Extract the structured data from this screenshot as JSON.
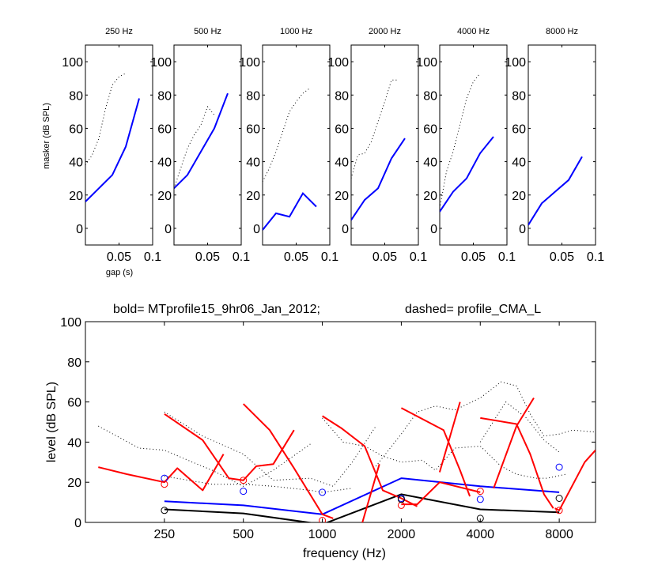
{
  "figure": {
    "top_row_ylabel": "masker (dB SPL)",
    "top_row_xlabel": "gap (s)",
    "bottom_title_bold": "bold= MTprofile15_9hr06_Jan_2012;",
    "bottom_title_dashed": "dashed=  profile_CMA_L"
  },
  "colors": {
    "blue": "#0000ff",
    "red": "#ff0000",
    "black": "#000000",
    "dotted": "#000000"
  },
  "chart_data": [
    {
      "type": "line",
      "title": "250 Hz",
      "xlabel": "gap (s)",
      "ylabel": "masker (dB SPL)",
      "xlim": [
        0,
        0.1
      ],
      "ylim": [
        -10,
        110
      ],
      "xticks": [
        "0.05",
        "0.1"
      ],
      "yticks": [
        "0",
        "20",
        "40",
        "60",
        "80",
        "100"
      ],
      "series": [
        {
          "style": "solid",
          "color": "blue",
          "points": [
            [
              0,
              16
            ],
            [
              0.02,
              24
            ],
            [
              0.04,
              32
            ],
            [
              0.06,
              49
            ],
            [
              0.08,
              78
            ]
          ]
        },
        {
          "style": "dotted",
          "color": "black",
          "points": [
            [
              0,
              38
            ],
            [
              0.01,
              44
            ],
            [
              0.02,
              54
            ],
            [
              0.03,
              72
            ],
            [
              0.04,
              86
            ],
            [
              0.05,
              91
            ],
            [
              0.06,
              93
            ]
          ]
        }
      ]
    },
    {
      "type": "line",
      "title": "500 Hz",
      "xlim": [
        0,
        0.1
      ],
      "ylim": [
        -10,
        110
      ],
      "xticks": [
        "0.05",
        "0.1"
      ],
      "yticks": [
        "0",
        "20",
        "40",
        "60",
        "80",
        "100"
      ],
      "series": [
        {
          "style": "solid",
          "color": "blue",
          "points": [
            [
              0,
              24
            ],
            [
              0.02,
              32
            ],
            [
              0.04,
              46
            ],
            [
              0.06,
              60
            ],
            [
              0.08,
              81
            ]
          ]
        },
        {
          "style": "dotted",
          "color": "black",
          "points": [
            [
              0,
              24
            ],
            [
              0.01,
              36
            ],
            [
              0.02,
              48
            ],
            [
              0.03,
              56
            ],
            [
              0.04,
              62
            ],
            [
              0.05,
              73
            ],
            [
              0.06,
              68
            ]
          ]
        }
      ]
    },
    {
      "type": "line",
      "title": "1000 Hz",
      "xlim": [
        0,
        0.1
      ],
      "ylim": [
        -10,
        110
      ],
      "xticks": [
        "0.05",
        "0.1"
      ],
      "yticks": [
        "0",
        "20",
        "40",
        "60",
        "80",
        "100"
      ],
      "series": [
        {
          "style": "solid",
          "color": "blue",
          "points": [
            [
              0,
              -1
            ],
            [
              0.02,
              9
            ],
            [
              0.04,
              7
            ],
            [
              0.06,
              21
            ],
            [
              0.08,
              13
            ]
          ]
        },
        {
          "style": "dotted",
          "color": "black",
          "points": [
            [
              0,
              28
            ],
            [
              0.01,
              36
            ],
            [
              0.02,
              46
            ],
            [
              0.03,
              58
            ],
            [
              0.04,
              70
            ],
            [
              0.05,
              76
            ],
            [
              0.06,
              81
            ],
            [
              0.07,
              84
            ]
          ]
        }
      ]
    },
    {
      "type": "line",
      "title": "2000 Hz",
      "xlim": [
        0,
        0.1
      ],
      "ylim": [
        -10,
        110
      ],
      "xticks": [
        "0.05",
        "0.1"
      ],
      "yticks": [
        "0",
        "20",
        "40",
        "60",
        "80",
        "100"
      ],
      "series": [
        {
          "style": "solid",
          "color": "blue",
          "points": [
            [
              0,
              5
            ],
            [
              0.02,
              17
            ],
            [
              0.04,
              24
            ],
            [
              0.06,
              42
            ],
            [
              0.08,
              54
            ]
          ]
        },
        {
          "style": "dotted",
          "color": "black",
          "points": [
            [
              0,
              30
            ],
            [
              0.01,
              44
            ],
            [
              0.02,
              45
            ],
            [
              0.03,
              52
            ],
            [
              0.04,
              64
            ],
            [
              0.05,
              76
            ],
            [
              0.06,
              89
            ],
            [
              0.07,
              89
            ]
          ]
        }
      ]
    },
    {
      "type": "line",
      "title": "4000 Hz",
      "xlim": [
        0,
        0.1
      ],
      "ylim": [
        -10,
        110
      ],
      "xticks": [
        "0.05",
        "0.1"
      ],
      "yticks": [
        "0",
        "20",
        "40",
        "60",
        "80",
        "100"
      ],
      "series": [
        {
          "style": "solid",
          "color": "blue",
          "points": [
            [
              0,
              10
            ],
            [
              0.02,
              22
            ],
            [
              0.04,
              30
            ],
            [
              0.06,
              45
            ],
            [
              0.08,
              55
            ]
          ]
        },
        {
          "style": "dotted",
          "color": "black",
          "points": [
            [
              0,
              12
            ],
            [
              0.01,
              34
            ],
            [
              0.02,
              46
            ],
            [
              0.03,
              62
            ],
            [
              0.04,
              78
            ],
            [
              0.05,
              88
            ],
            [
              0.06,
              93
            ]
          ]
        }
      ]
    },
    {
      "type": "line",
      "title": "8000 Hz",
      "xlim": [
        0,
        0.1
      ],
      "ylim": [
        -10,
        110
      ],
      "xticks": [
        "0.05",
        "0.1"
      ],
      "yticks": [
        "0",
        "20",
        "40",
        "60",
        "80",
        "100"
      ],
      "series": [
        {
          "style": "solid",
          "color": "blue",
          "points": [
            [
              0,
              2
            ],
            [
              0.02,
              15
            ],
            [
              0.04,
              22
            ],
            [
              0.06,
              29
            ],
            [
              0.08,
              43
            ]
          ]
        }
      ]
    },
    {
      "type": "line",
      "title": "bold= MTprofile15_9hr06_Jan_2012;          dashed=  profile_CMA_L",
      "xlabel": "frequency (Hz)",
      "ylabel": "level (dB SPL)",
      "xscale": "log2",
      "xlim": [
        125,
        11000
      ],
      "ylim": [
        0,
        100
      ],
      "xticks": [
        250,
        500,
        1000,
        2000,
        4000,
        8000
      ],
      "yticks": [
        0,
        20,
        40,
        60,
        80,
        100
      ],
      "series": [
        {
          "style": "solid",
          "color": "blue",
          "points": [
            [
              250,
              10.5
            ],
            [
              500,
              8.5
            ],
            [
              1000,
              4
            ],
            [
              2000,
              22
            ],
            [
              4000,
              18
            ],
            [
              8000,
              15
            ]
          ]
        },
        {
          "style": "solid",
          "color": "black",
          "points": [
            [
              250,
              6.5
            ],
            [
              500,
              4.5
            ],
            [
              1000,
              -1
            ],
            [
              2000,
              14
            ],
            [
              4000,
              6.5
            ],
            [
              8000,
              5
            ]
          ]
        },
        {
          "style": "solid",
          "color": "red",
          "points": [
            [
              140,
              27.5
            ],
            [
              180,
              24
            ],
            [
              250,
              20
            ],
            [
              280,
              27
            ],
            [
              350,
              16
            ],
            [
              420,
              34
            ]
          ]
        },
        {
          "style": "solid",
          "color": "red",
          "points": [
            [
              250,
              54
            ],
            [
              350,
              41
            ],
            [
              440,
              22
            ],
            [
              500,
              21
            ],
            [
              560,
              28
            ],
            [
              650,
              29
            ],
            [
              780,
              46
            ]
          ]
        },
        {
          "style": "solid",
          "color": "red",
          "points": [
            [
              500,
              59
            ],
            [
              630,
              46
            ],
            [
              780,
              27
            ],
            [
              1000,
              4
            ],
            [
              1100,
              2
            ]
          ]
        },
        {
          "style": "solid",
          "color": "red",
          "points": [
            [
              1000,
              53
            ],
            [
              1180,
              47
            ],
            [
              1450,
              38
            ],
            [
              1700,
              16
            ],
            [
              2000,
              12
            ],
            [
              2300,
              8
            ]
          ]
        },
        {
          "style": "solid",
          "color": "red",
          "points": [
            [
              1400,
              -3
            ],
            [
              1650,
              29
            ]
          ]
        },
        {
          "style": "solid",
          "color": "red",
          "points": [
            [
              2000,
              57
            ],
            [
              2900,
              46
            ],
            [
              3350,
              26
            ],
            [
              3650,
              13
            ]
          ]
        },
        {
          "style": "solid",
          "color": "red",
          "points": [
            [
              2800,
              25
            ],
            [
              3350,
              60
            ]
          ]
        },
        {
          "style": "solid",
          "color": "red",
          "points": [
            [
              2000,
              9
            ],
            [
              2300,
              9
            ],
            [
              2800,
              20
            ],
            [
              4000,
              15
            ]
          ]
        },
        {
          "style": "solid",
          "color": "red",
          "points": [
            [
              4000,
              52
            ],
            [
              5500,
              49
            ],
            [
              6200,
              34
            ],
            [
              7000,
              14
            ],
            [
              7600,
              7
            ]
          ]
        },
        {
          "style": "solid",
          "color": "red",
          "points": [
            [
              4500,
              17
            ],
            [
              5500,
              48
            ],
            [
              6400,
              62
            ]
          ]
        },
        {
          "style": "solid",
          "color": "red",
          "points": [
            [
              7700,
              7
            ],
            [
              8000,
              6
            ],
            [
              10000,
              30
            ],
            [
              11000,
              36
            ]
          ]
        },
        {
          "style": "dotted",
          "color": "black",
          "points": [
            [
              140,
              48
            ],
            [
              200,
              37
            ],
            [
              250,
              36
            ],
            [
              320,
              30
            ],
            [
              380,
              26
            ],
            [
              500,
              18
            ],
            [
              650,
              26
            ],
            [
              900,
              39
            ]
          ]
        },
        {
          "style": "dotted",
          "color": "black",
          "points": [
            [
              250,
              55
            ],
            [
              350,
              43
            ],
            [
              500,
              34
            ],
            [
              650,
              21
            ],
            [
              900,
              22
            ],
            [
              1100,
              18
            ],
            [
              1300,
              30
            ],
            [
              1600,
              48
            ]
          ]
        },
        {
          "style": "dotted",
          "color": "black",
          "points": [
            [
              250,
              23
            ],
            [
              380,
              19
            ],
            [
              500,
              19
            ],
            [
              650,
              18
            ],
            [
              900,
              16
            ],
            [
              1000,
              15
            ],
            [
              1300,
              17
            ]
          ]
        },
        {
          "style": "dotted",
          "color": "black",
          "points": [
            [
              1000,
              52
            ],
            [
              1200,
              40
            ],
            [
              1450,
              38
            ],
            [
              1700,
              33
            ],
            [
              2000,
              30
            ],
            [
              2400,
              31
            ],
            [
              2700,
              26
            ],
            [
              3200,
              37
            ],
            [
              4000,
              38
            ],
            [
              4800,
              28
            ],
            [
              5500,
              24
            ],
            [
              6500,
              22
            ],
            [
              7200,
              22
            ],
            [
              8500,
              24
            ]
          ]
        },
        {
          "style": "dotted",
          "color": "black",
          "points": [
            [
              1600,
              28
            ],
            [
              2000,
              44
            ],
            [
              2300,
              55
            ],
            [
              2700,
              58
            ],
            [
              3200,
              56
            ],
            [
              4000,
              62
            ],
            [
              4800,
              70
            ],
            [
              5500,
              68
            ],
            [
              6200,
              54
            ],
            [
              7000,
              43
            ],
            [
              8000,
              44
            ],
            [
              9000,
              46
            ],
            [
              11000,
              45
            ]
          ]
        },
        {
          "style": "dotted",
          "color": "black",
          "points": [
            [
              4000,
              40
            ],
            [
              5000,
              60
            ],
            [
              6000,
              52
            ],
            [
              7000,
              41
            ],
            [
              8000,
              35
            ]
          ]
        }
      ],
      "markers": [
        {
          "color": "blue",
          "points": [
            [
              250,
              22
            ],
            [
              500,
              15.5
            ],
            [
              1000,
              15
            ],
            [
              2000,
              12
            ],
            [
              4000,
              11.5
            ],
            [
              8000,
              27.5
            ]
          ]
        },
        {
          "color": "red",
          "points": [
            [
              250,
              19
            ],
            [
              500,
              21
            ],
            [
              1000,
              1
            ],
            [
              2000,
              8.5
            ],
            [
              4000,
              15.5
            ],
            [
              8000,
              6
            ]
          ]
        },
        {
          "color": "black",
          "points": [
            [
              250,
              6
            ],
            [
              2000,
              11.5
            ],
            [
              4000,
              2
            ],
            [
              8000,
              12
            ]
          ]
        }
      ]
    }
  ]
}
